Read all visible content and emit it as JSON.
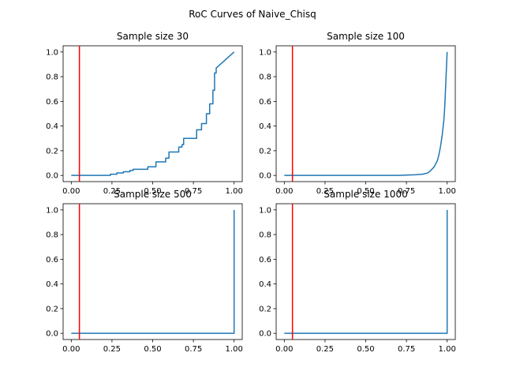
{
  "figure": {
    "suptitle": "RoC Curves of Naive_Chisq",
    "curve_color": "#1f77b4",
    "threshold_color": "#ff0000"
  },
  "chart_data": [
    {
      "type": "line",
      "title": "Sample size 30",
      "xlim": [
        -0.05,
        1.05
      ],
      "ylim": [
        -0.05,
        1.05
      ],
      "xticks": [
        "0.00",
        "0.25",
        "0.50",
        "0.75",
        "1.00"
      ],
      "xtick_values": [
        0,
        0.25,
        0.5,
        0.75,
        1
      ],
      "yticks": [
        "0.0",
        "0.2",
        "0.4",
        "0.6",
        "0.8",
        "1.0"
      ],
      "ytick_values": [
        0,
        0.2,
        0.4,
        0.6,
        0.8,
        1
      ],
      "threshold_x": 0.05,
      "series": [
        {
          "x": [
            0,
            0.2,
            0.24,
            0.24,
            0.28,
            0.28,
            0.32,
            0.32,
            0.36,
            0.36,
            0.38,
            0.38,
            0.47,
            0.47,
            0.52,
            0.52,
            0.58,
            0.58,
            0.6,
            0.6,
            0.66,
            0.66,
            0.68,
            0.68,
            0.69,
            0.69,
            0.77,
            0.77,
            0.8,
            0.8,
            0.83,
            0.83,
            0.85,
            0.85,
            0.87,
            0.87,
            0.88,
            0.88,
            0.89,
            0.89,
            1.0
          ],
          "y": [
            0,
            0,
            0,
            0.01,
            0.01,
            0.02,
            0.02,
            0.03,
            0.03,
            0.04,
            0.04,
            0.05,
            0.05,
            0.07,
            0.07,
            0.11,
            0.11,
            0.14,
            0.14,
            0.19,
            0.19,
            0.23,
            0.23,
            0.25,
            0.25,
            0.3,
            0.3,
            0.37,
            0.37,
            0.42,
            0.42,
            0.5,
            0.5,
            0.58,
            0.58,
            0.69,
            0.69,
            0.83,
            0.83,
            0.87,
            1.0
          ]
        }
      ]
    },
    {
      "type": "line",
      "title": "Sample size 100",
      "xlim": [
        -0.05,
        1.05
      ],
      "ylim": [
        -0.05,
        1.05
      ],
      "xticks": [
        "0.00",
        "0.25",
        "0.50",
        "0.75",
        "1.00"
      ],
      "xtick_values": [
        0,
        0.25,
        0.5,
        0.75,
        1
      ],
      "yticks": [
        "0.0",
        "0.2",
        "0.4",
        "0.6",
        "0.8",
        "1.0"
      ],
      "ytick_values": [
        0,
        0.2,
        0.4,
        0.6,
        0.8,
        1
      ],
      "threshold_x": 0.05,
      "series": [
        {
          "x": [
            0,
            0.7,
            0.8,
            0.85,
            0.88,
            0.9,
            0.92,
            0.94,
            0.95,
            0.96,
            0.97,
            0.98,
            0.985,
            0.99,
            0.995,
            1.0
          ],
          "y": [
            0,
            0,
            0.005,
            0.01,
            0.02,
            0.04,
            0.07,
            0.12,
            0.17,
            0.24,
            0.33,
            0.45,
            0.55,
            0.7,
            0.85,
            1.0
          ]
        }
      ]
    },
    {
      "type": "line",
      "title": "Sample size 500",
      "xlim": [
        -0.05,
        1.05
      ],
      "ylim": [
        -0.05,
        1.05
      ],
      "xticks": [
        "0.00",
        "0.25",
        "0.50",
        "0.75",
        "1.00"
      ],
      "xtick_values": [
        0,
        0.25,
        0.5,
        0.75,
        1
      ],
      "yticks": [
        "0.0",
        "0.2",
        "0.4",
        "0.6",
        "0.8",
        "1.0"
      ],
      "ytick_values": [
        0,
        0.2,
        0.4,
        0.6,
        0.8,
        1
      ],
      "threshold_x": 0.05,
      "series": [
        {
          "x": [
            0,
            0.998,
            1.0,
            1.0
          ],
          "y": [
            0,
            0,
            0,
            1.0
          ]
        }
      ]
    },
    {
      "type": "line",
      "title": "Sample size 1000",
      "xlim": [
        -0.05,
        1.05
      ],
      "ylim": [
        -0.05,
        1.05
      ],
      "xticks": [
        "0.00",
        "0.25",
        "0.50",
        "0.75",
        "1.00"
      ],
      "xtick_values": [
        0,
        0.25,
        0.5,
        0.75,
        1
      ],
      "yticks": [
        "0.0",
        "0.2",
        "0.4",
        "0.6",
        "0.8",
        "1.0"
      ],
      "ytick_values": [
        0,
        0.2,
        0.4,
        0.6,
        0.8,
        1
      ],
      "threshold_x": 0.05,
      "series": [
        {
          "x": [
            0,
            0.999,
            1.0,
            1.0
          ],
          "y": [
            0,
            0,
            0,
            1.0
          ]
        }
      ]
    }
  ]
}
